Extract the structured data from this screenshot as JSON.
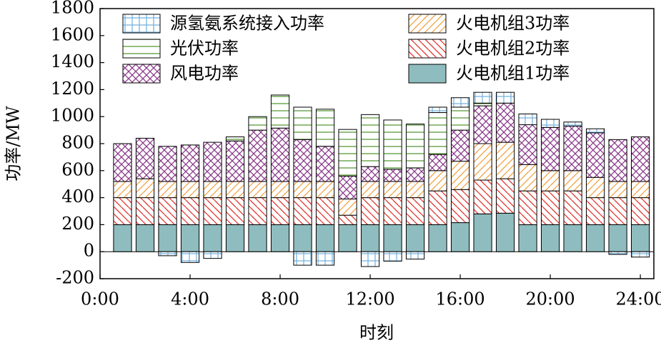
{
  "chart_data": {
    "type": "stacked-bar",
    "x_label": "时刻",
    "y_label": "功率/MW",
    "x": [
      1,
      2,
      3,
      4,
      5,
      6,
      7,
      8,
      9,
      10,
      11,
      12,
      13,
      14,
      15,
      16,
      17,
      18,
      19,
      20,
      21,
      22,
      23,
      24
    ],
    "xlim": [
      0,
      24.6
    ],
    "xticks": [
      {
        "value": 0,
        "label": "0:00"
      },
      {
        "value": 4,
        "label": "4:00"
      },
      {
        "value": 8,
        "label": "8:00"
      },
      {
        "value": 12,
        "label": "12:00"
      },
      {
        "value": 16,
        "label": "16:00"
      },
      {
        "value": 20,
        "label": "20:00"
      },
      {
        "value": 24,
        "label": "24:00"
      }
    ],
    "ylim": [
      -200,
      1800
    ],
    "yticks": [
      -200,
      0,
      200,
      400,
      600,
      800,
      1000,
      1200,
      1400,
      1600,
      1800
    ],
    "series": [
      {
        "name": "火电机组1功率",
        "color": "#8fbcbf",
        "hatch": "solid",
        "values": [
          200,
          200,
          200,
          200,
          200,
          200,
          200,
          200,
          200,
          200,
          200,
          200,
          200,
          200,
          200,
          215,
          280,
          285,
          200,
          200,
          200,
          200,
          200,
          200
        ]
      },
      {
        "name": "火电机组2功率",
        "color": "#e0302a",
        "hatch": "backslash",
        "values": [
          200,
          200,
          200,
          200,
          200,
          200,
          200,
          200,
          200,
          200,
          70,
          200,
          200,
          200,
          250,
          245,
          250,
          255,
          250,
          250,
          250,
          200,
          200,
          200
        ]
      },
      {
        "name": "火电机组3功率",
        "color": "#f0a040",
        "hatch": "slash",
        "values": [
          120,
          140,
          120,
          120,
          120,
          120,
          120,
          120,
          120,
          120,
          120,
          120,
          120,
          120,
          150,
          210,
          270,
          270,
          195,
          150,
          150,
          150,
          120,
          120
        ]
      },
      {
        "name": "风电功率",
        "color": "#8b3a8b",
        "hatch": "cross",
        "values": [
          280,
          300,
          260,
          270,
          290,
          300,
          380,
          395,
          310,
          260,
          170,
          110,
          90,
          100,
          120,
          230,
          280,
          290,
          295,
          320,
          330,
          330,
          310,
          330
        ]
      },
      {
        "name": "光伏功率",
        "color": "#5a9a3a",
        "hatch": "horizontal",
        "values": [
          0,
          0,
          0,
          0,
          0,
          30,
          100,
          245,
          240,
          275,
          345,
          385,
          365,
          325,
          310,
          170,
          20,
          0,
          0,
          0,
          0,
          0,
          0,
          0
        ]
      },
      {
        "name": "源氢氨系统接入功率",
        "color": "#7ab4e0",
        "hatch": "grid",
        "values": [
          0,
          0,
          -30,
          -80,
          -50,
          0,
          0,
          0,
          -100,
          -100,
          0,
          -110,
          -70,
          -55,
          40,
          70,
          80,
          80,
          80,
          60,
          30,
          30,
          -20,
          -40
        ]
      }
    ]
  }
}
